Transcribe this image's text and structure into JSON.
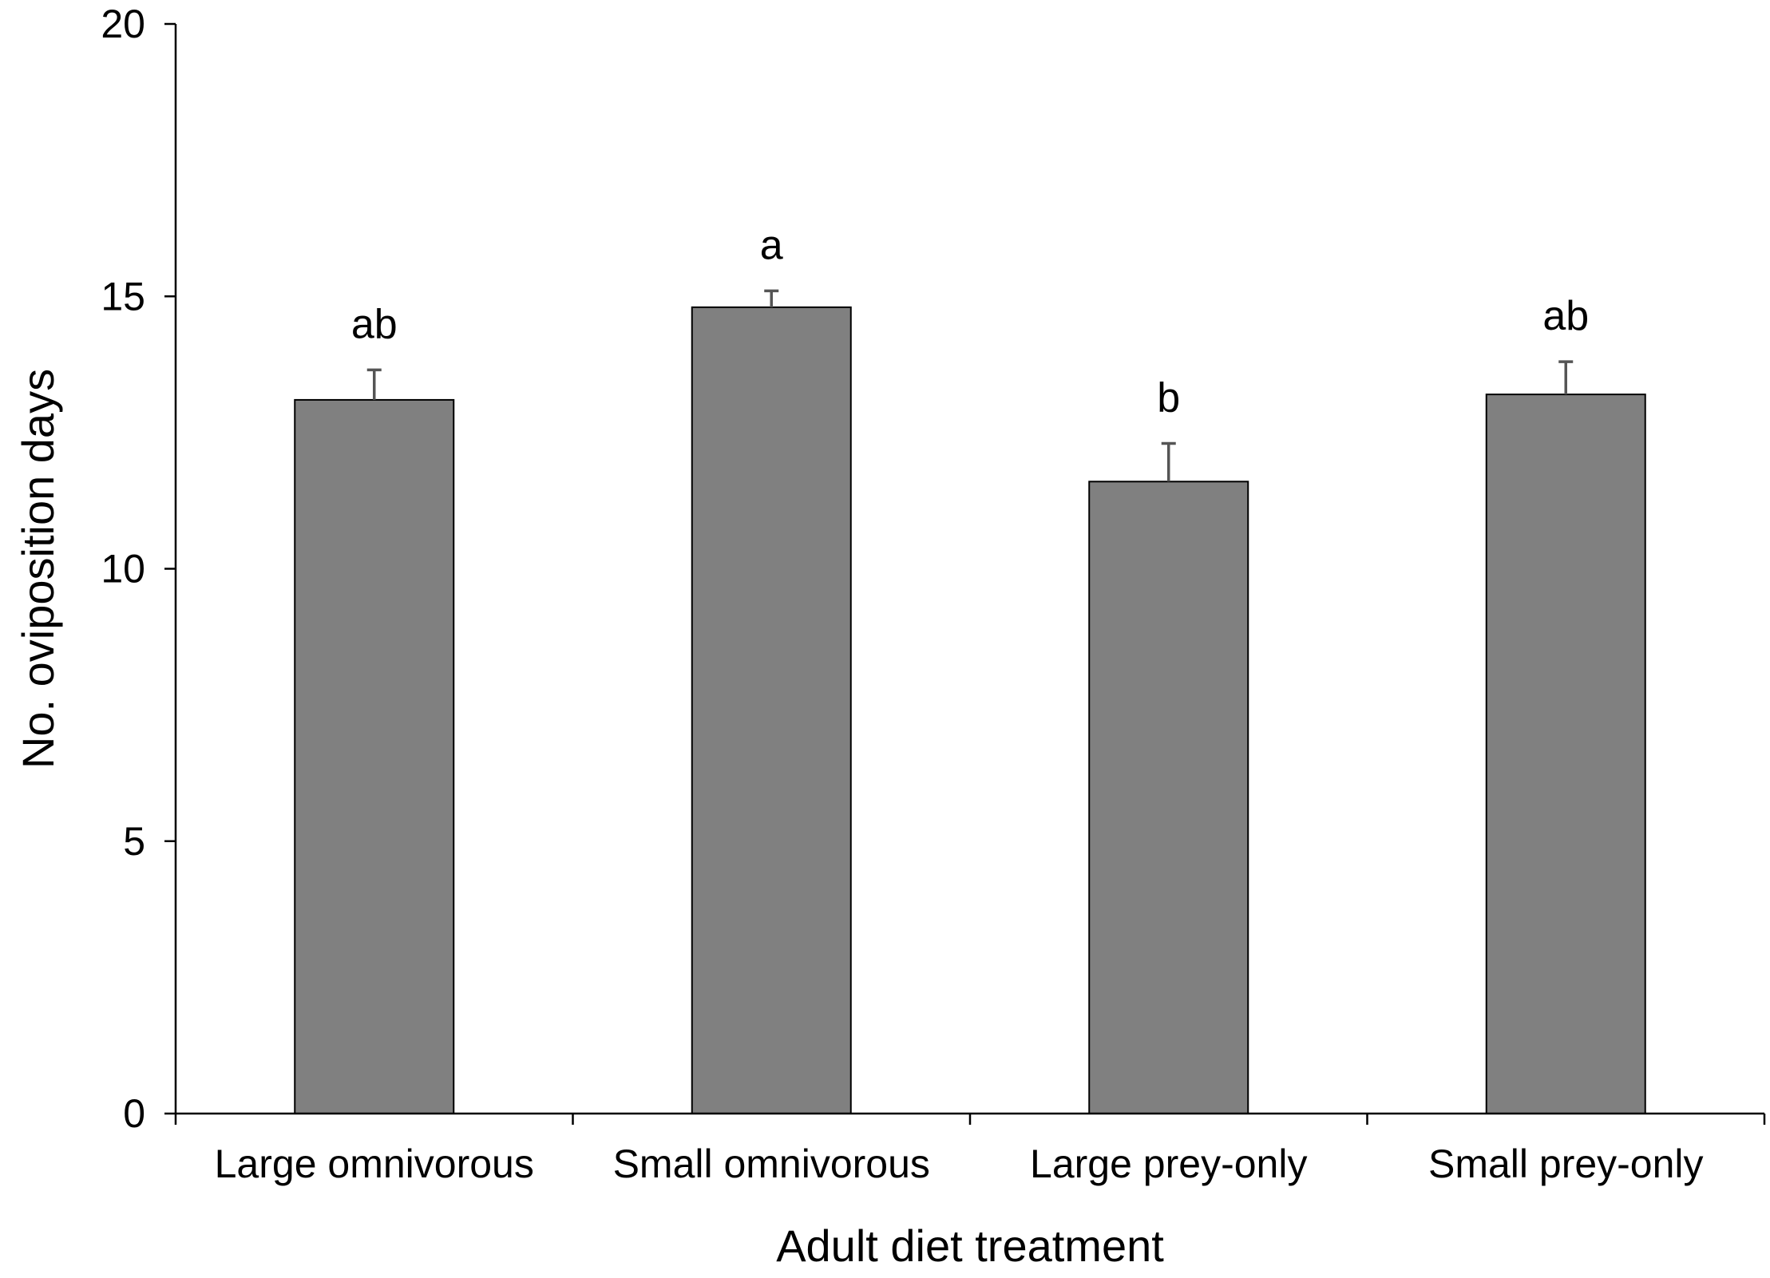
{
  "chart_data": {
    "type": "bar",
    "title": "",
    "xlabel": "Adult diet treatment",
    "ylabel": "No. oviposition days",
    "ylim": [
      0,
      20
    ],
    "yticks": [
      "0",
      "5",
      "10",
      "15",
      "20"
    ],
    "categories": [
      "Large omnivorous",
      "Small omnivorous",
      "Large prey-only",
      "Small prey-only"
    ],
    "values": [
      13.1,
      14.8,
      11.6,
      13.2
    ],
    "error_upper": [
      0.55,
      0.3,
      0.7,
      0.6
    ],
    "significance_labels": [
      "ab",
      "a",
      "b",
      "ab"
    ],
    "bar_color": "#808080",
    "grid": false
  }
}
